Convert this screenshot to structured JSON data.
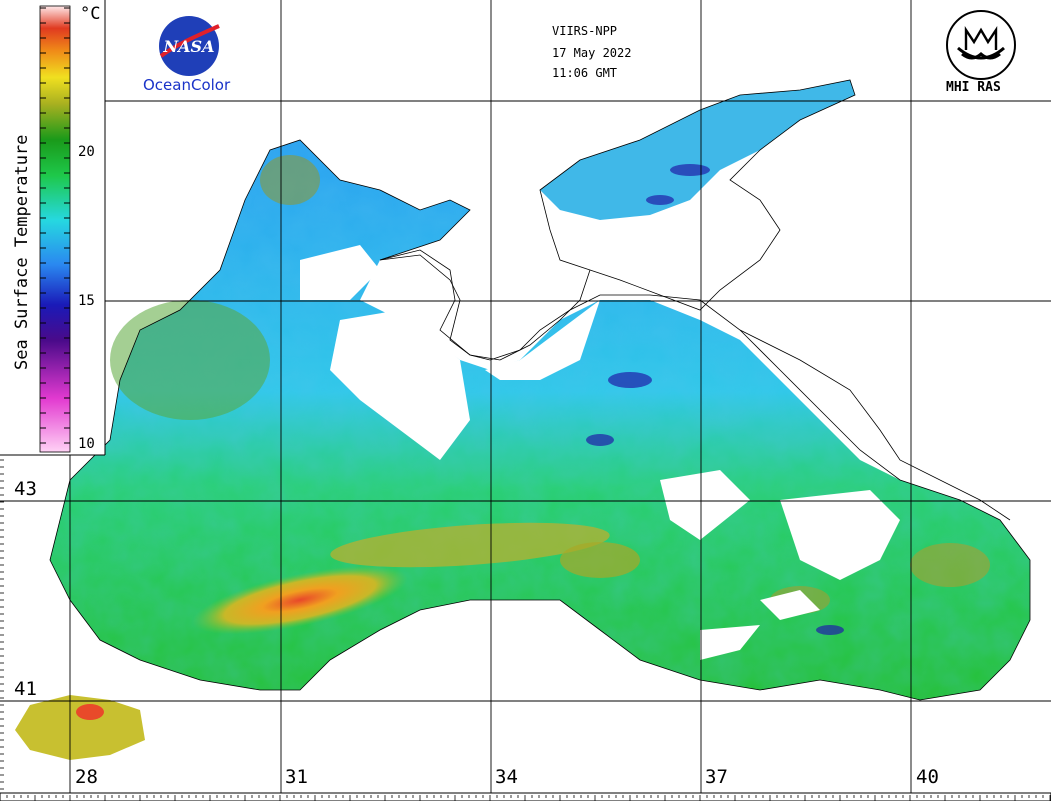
{
  "header": {
    "sensor": "VIIRS-NPP",
    "date": "17 May 2022",
    "time": "11:06 GMT"
  },
  "logos": {
    "nasa_text": "NASA",
    "oceancolor_label": "OceanColor",
    "mhi_label": "MHI RAS"
  },
  "colorbar": {
    "title": "Sea Surface Temperature",
    "unit": "°C",
    "ticks": [
      "20",
      "15",
      "10"
    ],
    "range": [
      10,
      25
    ]
  },
  "axes": {
    "longitude_labels": [
      "28",
      "31",
      "34",
      "37",
      "40"
    ],
    "latitude_labels": [
      "43",
      "41"
    ]
  },
  "colors": {
    "land": "#ffffff",
    "coastline": "#000000",
    "grid": "#000000",
    "nasa_blue": "#1f3fb8",
    "nasa_red": "#e0202a"
  }
}
